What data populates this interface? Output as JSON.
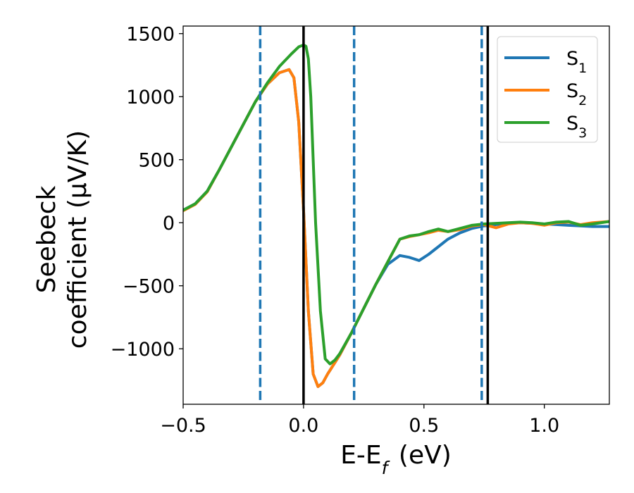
{
  "chart_data": {
    "type": "line",
    "xlabel": "E-E$_f$ (eV)",
    "ylabel": "Seebeck coefficient (μV/K)",
    "xlim": [
      -0.5,
      1.27
    ],
    "ylim": [
      -1440,
      1560
    ],
    "x_ticks": [
      -0.5,
      0.0,
      0.5,
      1.0
    ],
    "x_tick_labels": [
      "−0.5",
      "0.0",
      "0.5",
      "1.0"
    ],
    "y_ticks": [
      -1000,
      -500,
      0,
      500,
      1000,
      1500
    ],
    "y_tick_labels": [
      "−1000",
      "−500",
      "0",
      "500",
      "1000",
      "1500"
    ],
    "legend_position": "top-right",
    "series": [
      {
        "name": "S1",
        "color": "#1f77b4",
        "x": [
          -0.5,
          -0.45,
          -0.4,
          -0.35,
          -0.3,
          -0.25,
          -0.2,
          -0.15,
          -0.1,
          -0.06,
          -0.04,
          -0.02,
          0.0,
          0.02,
          0.04,
          0.06,
          0.08,
          0.1,
          0.15,
          0.2,
          0.25,
          0.3,
          0.35,
          0.4,
          0.44,
          0.48,
          0.52,
          0.56,
          0.6,
          0.65,
          0.7,
          0.75,
          0.8,
          0.85,
          0.9,
          0.95,
          1.0,
          1.05,
          1.1,
          1.15,
          1.2,
          1.27
        ],
        "y": [
          100,
          150,
          250,
          420,
          600,
          780,
          960,
          1100,
          1190,
          1215,
          1150,
          800,
          100,
          -700,
          -1200,
          -1300,
          -1270,
          -1200,
          -1050,
          -870,
          -680,
          -490,
          -330,
          -260,
          -275,
          -300,
          -250,
          -190,
          -130,
          -80,
          -45,
          -25,
          -15,
          -5,
          0,
          -5,
          -10,
          -15,
          -20,
          -25,
          -30,
          -30
        ]
      },
      {
        "name": "S2",
        "color": "#ff7f0e",
        "x": [
          -0.5,
          -0.45,
          -0.4,
          -0.35,
          -0.3,
          -0.25,
          -0.2,
          -0.15,
          -0.1,
          -0.06,
          -0.04,
          -0.02,
          0.0,
          0.02,
          0.04,
          0.06,
          0.08,
          0.1,
          0.15,
          0.2,
          0.25,
          0.3,
          0.35,
          0.4,
          0.44,
          0.48,
          0.52,
          0.56,
          0.6,
          0.65,
          0.7,
          0.75,
          0.8,
          0.85,
          0.9,
          0.95,
          1.0,
          1.05,
          1.1,
          1.15,
          1.2,
          1.27
        ],
        "y": [
          95,
          145,
          245,
          420,
          600,
          780,
          960,
          1100,
          1190,
          1215,
          1150,
          800,
          100,
          -700,
          -1200,
          -1300,
          -1270,
          -1200,
          -1050,
          -870,
          -680,
          -490,
          -310,
          -130,
          -110,
          -95,
          -80,
          -60,
          -70,
          -55,
          -25,
          -15,
          -40,
          -10,
          0,
          -5,
          -20,
          0,
          5,
          -15,
          0,
          10
        ]
      },
      {
        "name": "S3",
        "color": "#2ca02c",
        "x": [
          -0.5,
          -0.45,
          -0.4,
          -0.35,
          -0.3,
          -0.25,
          -0.2,
          -0.15,
          -0.1,
          -0.05,
          -0.02,
          0.0,
          0.01,
          0.02,
          0.03,
          0.04,
          0.05,
          0.07,
          0.09,
          0.11,
          0.13,
          0.15,
          0.2,
          0.25,
          0.3,
          0.35,
          0.4,
          0.44,
          0.48,
          0.52,
          0.56,
          0.6,
          0.65,
          0.7,
          0.75,
          0.8,
          0.85,
          0.9,
          0.95,
          1.0,
          1.05,
          1.1,
          1.15,
          1.2,
          1.27
        ],
        "y": [
          100,
          150,
          250,
          420,
          600,
          780,
          960,
          1110,
          1240,
          1340,
          1395,
          1410,
          1400,
          1300,
          1000,
          500,
          0,
          -700,
          -1080,
          -1120,
          -1090,
          -1040,
          -870,
          -680,
          -490,
          -310,
          -130,
          -105,
          -95,
          -70,
          -50,
          -70,
          -45,
          -20,
          -10,
          -5,
          0,
          5,
          0,
          -10,
          5,
          10,
          -20,
          -10,
          10
        ]
      }
    ],
    "vlines": [
      {
        "x": -0.18,
        "style": "dashed",
        "color": "#1f77b4"
      },
      {
        "x": 0.0,
        "style": "solid",
        "color": "#000000"
      },
      {
        "x": 0.21,
        "style": "dashed",
        "color": "#1f77b4"
      },
      {
        "x": 0.74,
        "style": "dashed",
        "color": "#1f77b4"
      },
      {
        "x": 0.765,
        "style": "solid",
        "color": "#000000"
      }
    ]
  }
}
